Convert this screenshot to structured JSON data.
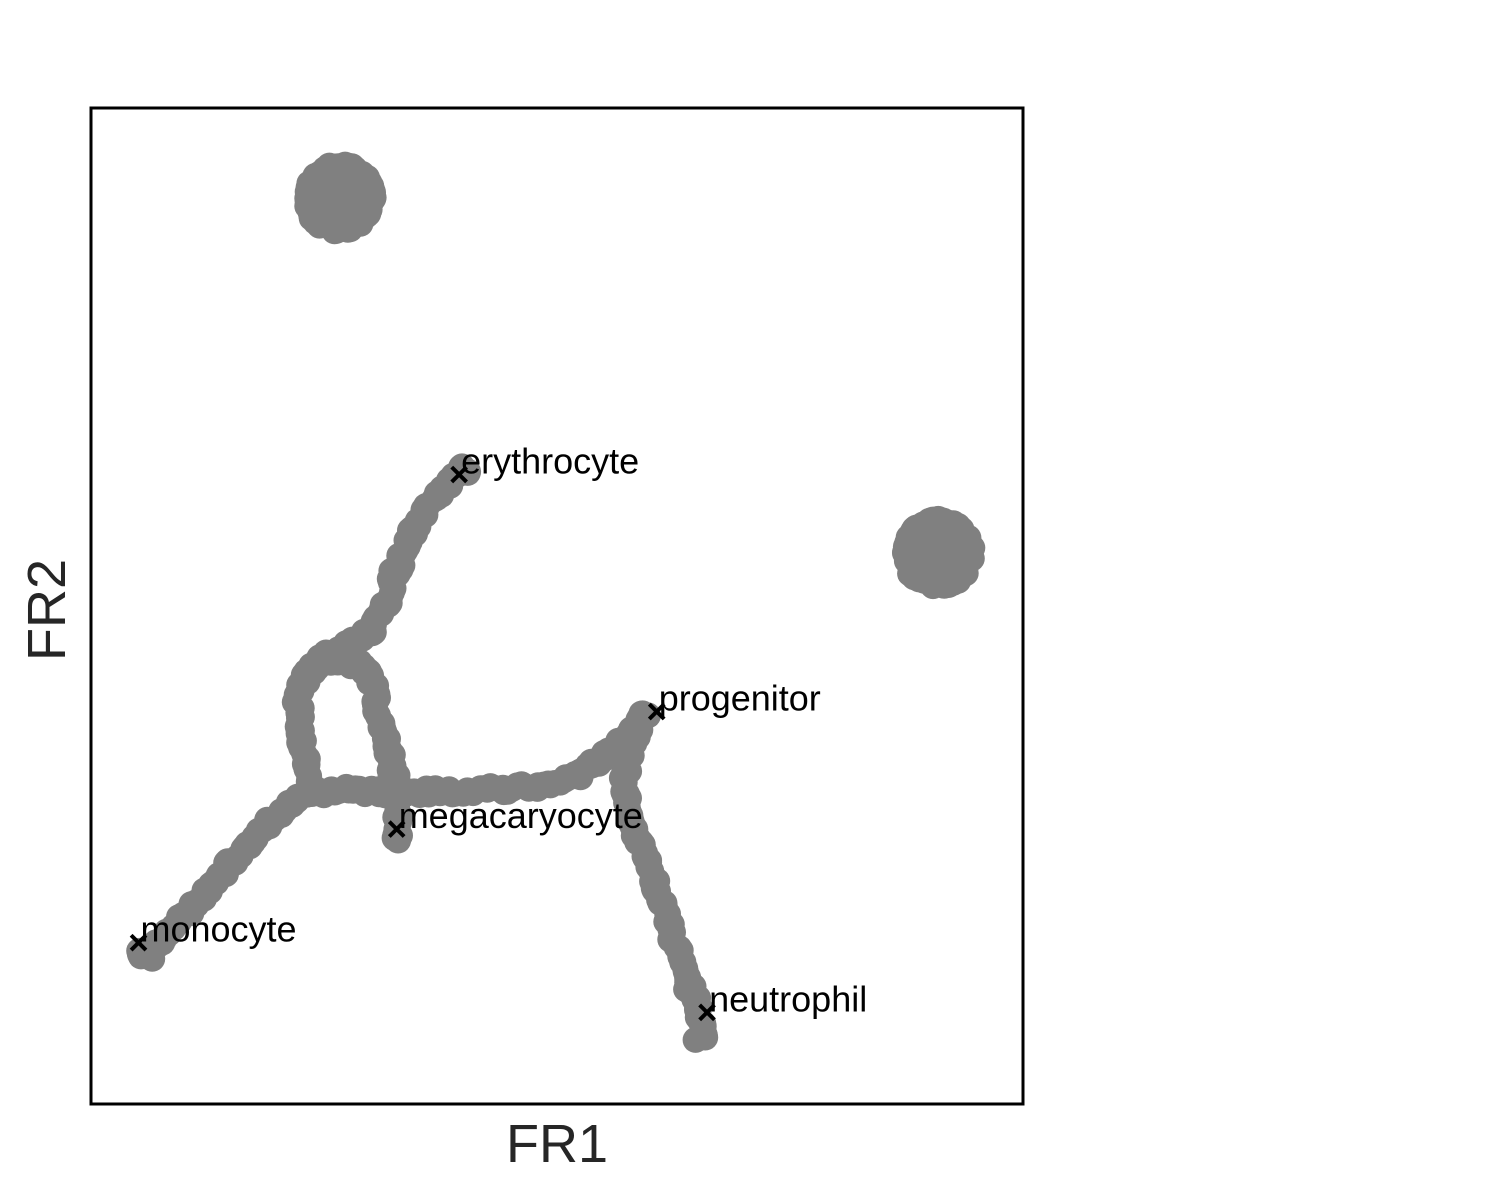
{
  "chart_data": {
    "type": "scatter",
    "title": "",
    "xlabel": "FR1",
    "ylabel": "FR2",
    "xlim": [
      0,
      100
    ],
    "ylim": [
      0,
      100
    ],
    "show_ticks": false,
    "grid": false,
    "legend": "none",
    "colors": {
      "points": "#808080",
      "markers": "#000000",
      "frame": "#000000",
      "axis_text": "#262626"
    },
    "clusters": [
      {
        "center": [
          26.7,
          91.0
        ],
        "radius": 4.6
      },
      {
        "center": [
          90.9,
          55.3
        ],
        "radius": 4.6
      }
    ],
    "trajectories": [
      {
        "name": "",
        "points": [
          [
            59.6,
            39.3
          ],
          [
            57.8,
            37.3
          ],
          [
            55.3,
            35.1
          ],
          [
            52.4,
            33.1
          ],
          [
            48.9,
            32.0
          ],
          [
            44.0,
            31.6
          ],
          [
            38.6,
            31.4
          ],
          [
            32.4,
            31.3
          ],
          [
            27.2,
            31.5
          ],
          [
            23.5,
            31.2
          ]
        ]
      },
      {
        "name": "",
        "points": [
          [
            59.6,
            39.3
          ],
          [
            58.3,
            36.8
          ],
          [
            57.4,
            34.2
          ],
          [
            57.3,
            31.3
          ],
          [
            57.9,
            28.3
          ],
          [
            59.6,
            24.3
          ],
          [
            61.2,
            20.3
          ],
          [
            62.5,
            16.6
          ],
          [
            63.8,
            12.5
          ],
          [
            65.3,
            9.5
          ],
          [
            65.7,
            7.0
          ],
          [
            65.2,
            6.6
          ]
        ]
      },
      {
        "name": "",
        "points": [
          [
            23.5,
            31.2
          ],
          [
            20.5,
            29.3
          ],
          [
            17.4,
            26.8
          ],
          [
            14.2,
            23.3
          ],
          [
            11.0,
            19.8
          ],
          [
            8.4,
            17.1
          ],
          [
            6.2,
            15.5
          ],
          [
            5.1,
            15.1
          ],
          [
            6.5,
            14.9
          ]
        ]
      },
      {
        "name": "",
        "points": [
          [
            23.5,
            31.2
          ],
          [
            23.0,
            33.8
          ],
          [
            22.5,
            37.8
          ],
          [
            22.2,
            40.2
          ],
          [
            22.7,
            42.3
          ],
          [
            24.0,
            43.9
          ],
          [
            26.3,
            44.7
          ],
          [
            28.7,
            44.1
          ],
          [
            30.1,
            42.8
          ],
          [
            30.5,
            40.9
          ],
          [
            30.9,
            39.1
          ],
          [
            31.4,
            37.3
          ],
          [
            32.0,
            35.2
          ],
          [
            32.5,
            33.0
          ],
          [
            32.9,
            30.9
          ],
          [
            33.0,
            28.4
          ],
          [
            32.8,
            26.3
          ]
        ]
      },
      {
        "name": "",
        "points": [
          [
            22.7,
            42.3
          ],
          [
            24.7,
            44.6
          ],
          [
            27.3,
            46.0
          ],
          [
            30.0,
            47.5
          ],
          [
            31.6,
            49.8
          ],
          [
            32.6,
            53.2
          ],
          [
            34.2,
            56.7
          ],
          [
            36.0,
            59.8
          ],
          [
            38.3,
            62.4
          ],
          [
            40.0,
            63.7
          ],
          [
            40.3,
            63.6
          ]
        ]
      }
    ],
    "annotations": [
      {
        "text": "erythrocyte",
        "x": 39.5,
        "y": 63.2
      },
      {
        "text": "progenitor",
        "x": 60.7,
        "y": 39.4
      },
      {
        "text": "megacaryocyte",
        "x": 32.8,
        "y": 27.6
      },
      {
        "text": "monocyte",
        "x": 5.1,
        "y": 16.2
      },
      {
        "text": "neutrophil",
        "x": 66.1,
        "y": 9.2
      }
    ]
  }
}
